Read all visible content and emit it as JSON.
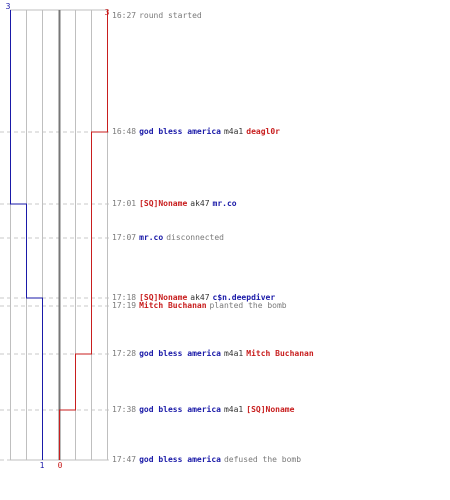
{
  "colors": {
    "ct": "#1a1aa8",
    "t": "#c81e1e",
    "gray": "#7a7a7a",
    "grid": "#bfbfbf",
    "center": "#777777",
    "dash": "#c8c8c8"
  },
  "team_counts": {
    "ct_start": "3",
    "t_start": "3",
    "ct_end": "1",
    "t_end": "0"
  },
  "events": [
    {
      "time": "16:27",
      "segments": [
        {
          "text": "round started",
          "style": "gray"
        }
      ]
    },
    {
      "time": "16:48",
      "segments": [
        {
          "text": "god bless america",
          "style": "ct"
        },
        {
          "text": "m4a1",
          "style": "weapon"
        },
        {
          "text": "deagl0r",
          "style": "t"
        }
      ]
    },
    {
      "time": "17:01",
      "segments": [
        {
          "text": "[SQ]Noname",
          "style": "t"
        },
        {
          "text": "ak47",
          "style": "weapon"
        },
        {
          "text": "mr.co",
          "style": "ct"
        }
      ]
    },
    {
      "time": "17:07",
      "segments": [
        {
          "text": "mr.co",
          "style": "ct"
        },
        {
          "text": "disconnected",
          "style": "gray"
        }
      ]
    },
    {
      "time": "17:18",
      "segments": [
        {
          "text": "[SQ]Noname",
          "style": "t"
        },
        {
          "text": "ak47",
          "style": "weapon"
        },
        {
          "text": "c$n.deepdiver",
          "style": "ct"
        }
      ]
    },
    {
      "time": "17:19",
      "segments": [
        {
          "text": "Mitch Buchanan",
          "style": "t"
        },
        {
          "text": "planted the bomb",
          "style": "gray"
        }
      ]
    },
    {
      "time": "17:28",
      "segments": [
        {
          "text": "god bless america",
          "style": "ct"
        },
        {
          "text": "m4a1",
          "style": "weapon"
        },
        {
          "text": "Mitch Buchanan",
          "style": "t"
        }
      ]
    },
    {
      "time": "17:38",
      "segments": [
        {
          "text": "god bless america",
          "style": "ct"
        },
        {
          "text": "m4a1",
          "style": "weapon"
        },
        {
          "text": "[SQ]Noname",
          "style": "t"
        }
      ]
    },
    {
      "time": "17:47",
      "segments": [
        {
          "text": "god bless america",
          "style": "ct"
        },
        {
          "text": "defused the bomb",
          "style": "gray"
        }
      ]
    }
  ]
}
